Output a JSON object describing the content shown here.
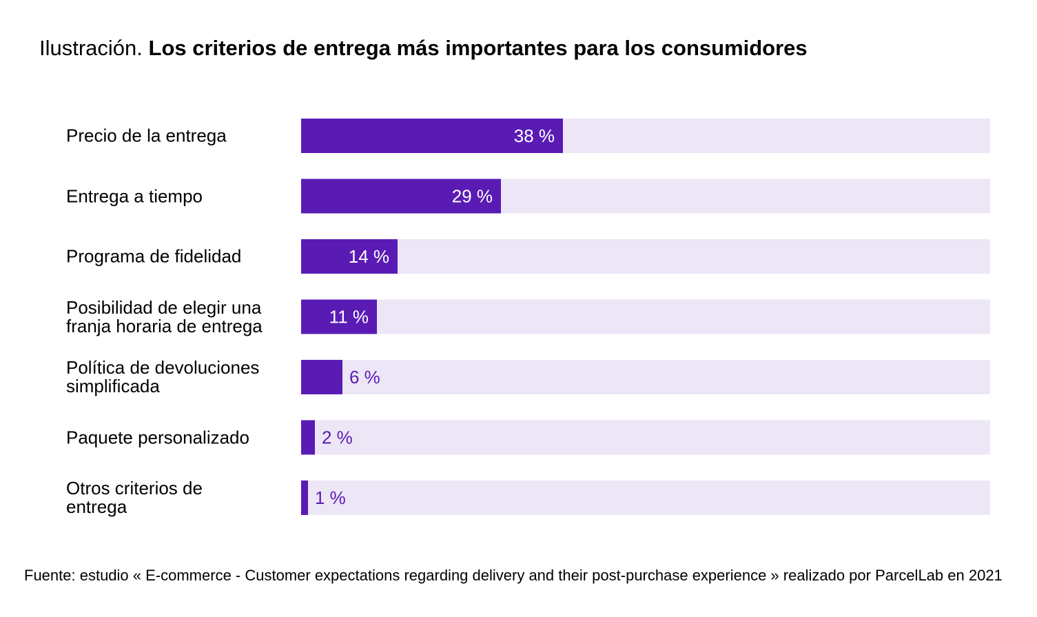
{
  "chart_data": {
    "type": "bar",
    "orientation": "horizontal",
    "title_label": "Ilustración.",
    "title": "Los criterios de entrega más importantes para los consumidores",
    "categories": [
      "Precio de la entrega",
      "Entrega a tiempo",
      "Programa de fidelidad",
      "Posibilidad de elegir una\nfranja horaria de entrega",
      "Política de devoluciones\nsimplificada",
      "Paquete personalizado",
      "Otros criterios de\nentrega"
    ],
    "values": [
      38,
      29,
      14,
      11,
      6,
      2,
      1
    ],
    "value_labels": [
      "38 %",
      "29 %",
      "14 %",
      "11 %",
      "6 %",
      "2 %",
      "1 %"
    ],
    "color": "#5a1bb5",
    "track_color": "#ede6f6",
    "xlim": [
      0,
      100
    ],
    "source": "Fuente: estudio « E-commerce - Customer expectations regarding delivery and their post-purchase experience » realizado por ParcelLab en 2021"
  }
}
